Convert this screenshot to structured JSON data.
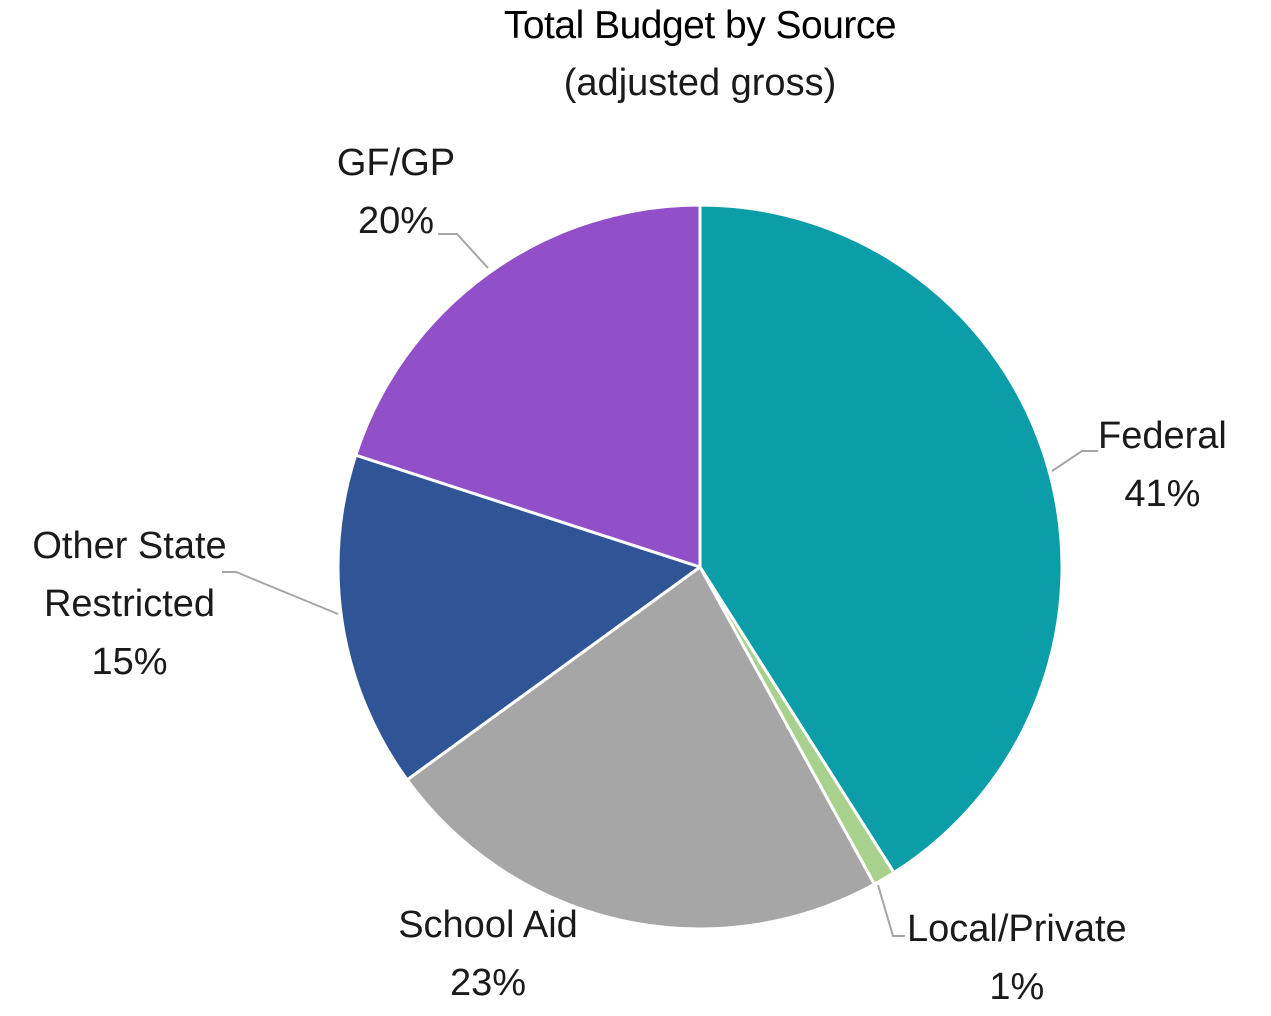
{
  "chart_data": {
    "type": "pie",
    "title": "Total Budget by Source",
    "subtitle": "(adjusted gross)",
    "slices": [
      {
        "name": "Federal",
        "value": 41,
        "label": "41%",
        "color": "#0b9da8"
      },
      {
        "name": "Local/Private",
        "value": 1,
        "label": "1%",
        "color": "#a9d18e"
      },
      {
        "name": "School Aid",
        "value": 23,
        "label": "23%",
        "color": "#a6a6a6"
      },
      {
        "name": "Other State Restricted",
        "value": 15,
        "label": "15%",
        "color": "#2f5597"
      },
      {
        "name": "GF/GP",
        "value": 20,
        "label": "20%",
        "color": "#9150c8"
      }
    ],
    "labels_display": {
      "federal": [
        "Federal"
      ],
      "local_private": [
        "Local/Private"
      ],
      "school_aid": [
        "School Aid"
      ],
      "other_state": [
        "Other State",
        "Restricted"
      ],
      "gfgp": [
        "GF/GP"
      ]
    }
  }
}
